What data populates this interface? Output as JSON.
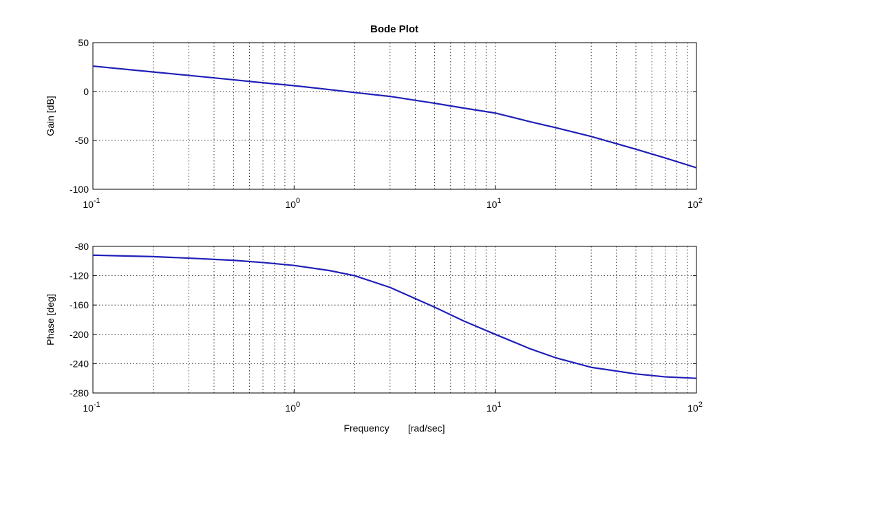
{
  "chart_data": [
    {
      "type": "line",
      "title": "Bode Plot",
      "ylabel": "Gain    [dB]",
      "xlabel": "",
      "x_scale": "log",
      "xlim": [
        0.1,
        100
      ],
      "ylim": [
        -100,
        50
      ],
      "yticks": [
        50,
        0,
        -50,
        -100
      ],
      "ytick_labels": [
        "50",
        "0",
        "-50",
        "-100"
      ],
      "xticks": [
        0.1,
        1,
        10,
        100
      ],
      "xtick_labels": [
        {
          "base": "10",
          "exp": "-1"
        },
        {
          "base": "10",
          "exp": "0"
        },
        {
          "base": "10",
          "exp": "1"
        },
        {
          "base": "10",
          "exp": "2"
        }
      ],
      "grid": true,
      "color": "#1f1fb8",
      "series": [
        {
          "x": [
            0.1,
            0.2,
            0.3,
            0.5,
            0.7,
            1,
            1.5,
            2,
            3,
            5,
            7,
            10,
            15,
            20,
            30,
            50,
            70,
            100
          ],
          "y": [
            26,
            20,
            16.5,
            12,
            9,
            6,
            2,
            -1,
            -5,
            -12,
            -17,
            -22,
            -31,
            -37,
            -46,
            -59,
            -68,
            -78
          ]
        }
      ]
    },
    {
      "type": "line",
      "title": "",
      "ylabel": "Phase    [deg]",
      "xlabel": "Frequency       [rad/sec]",
      "x_scale": "log",
      "xlim": [
        0.1,
        100
      ],
      "ylim": [
        -280,
        -80
      ],
      "yticks": [
        -80,
        -120,
        -160,
        -200,
        -240,
        -280
      ],
      "ytick_labels": [
        "-80",
        "-120",
        "-160",
        "-200",
        "-240",
        "-280"
      ],
      "xticks": [
        0.1,
        1,
        10,
        100
      ],
      "xtick_labels": [
        {
          "base": "10",
          "exp": "-1"
        },
        {
          "base": "10",
          "exp": "0"
        },
        {
          "base": "10",
          "exp": "1"
        },
        {
          "base": "10",
          "exp": "2"
        }
      ],
      "grid": true,
      "color": "#1f1fb8",
      "series": [
        {
          "x": [
            0.1,
            0.2,
            0.3,
            0.5,
            0.7,
            1,
            1.5,
            2,
            3,
            5,
            7,
            10,
            15,
            20,
            30,
            50,
            70,
            100
          ],
          "y": [
            -92,
            -94,
            -96,
            -99,
            -102,
            -106,
            -113,
            -120,
            -136,
            -163,
            -182,
            -200,
            -220,
            -232,
            -245,
            -254,
            -258,
            -260
          ]
        }
      ]
    }
  ]
}
